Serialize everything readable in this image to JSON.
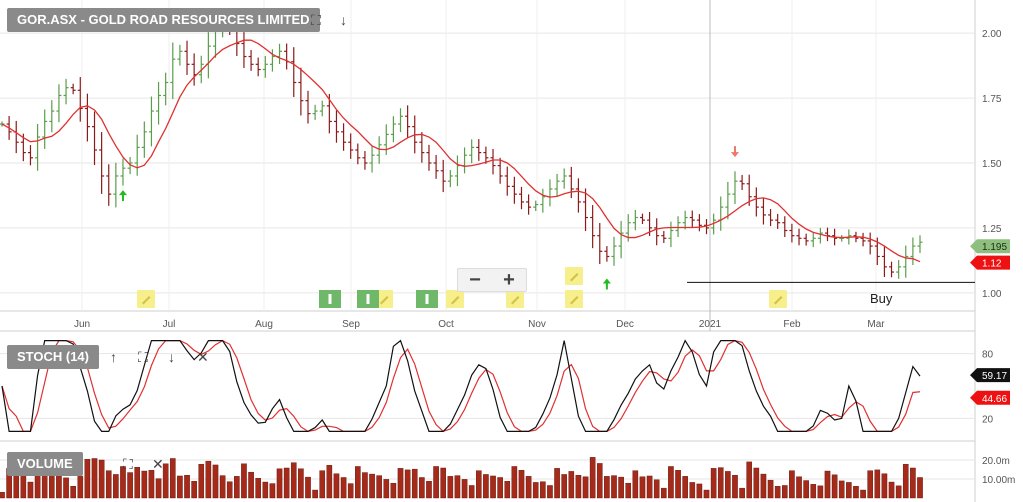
{
  "panels": {
    "price": {
      "title": "GOR.ASX - GOLD ROAD RESOURCES LIMITED"
    },
    "stoch": {
      "title": "STOCH (14)"
    },
    "volume": {
      "title": "VOLUME"
    }
  },
  "icons": {
    "expand": "expand-icon",
    "move_down": "arrow-down-icon",
    "move_up": "arrow-up-icon",
    "close": "close-icon",
    "annotation": "pencil-icon",
    "info": "info-icon",
    "zoom_out": "minus-icon",
    "zoom_in": "plus-icon"
  },
  "zoom": {
    "minus": "−",
    "plus": "+"
  },
  "annotation_text": "Buy",
  "colors": {
    "up_bar": "#5a9e4b",
    "down_bar": "#8b1a1a",
    "ma_line": "#e03030",
    "stoch_k": "#111111",
    "stoch_d": "#e03030",
    "volume_bar": "#a52a1a",
    "tag_bg": "#8a8a8a",
    "last_price_tag": "#8fbf7f",
    "ma_price_tag": "#ee1111",
    "note_marker": "#f6ef8b",
    "info_marker": "#6fb86a"
  },
  "chart_data": {
    "type": "ohlc",
    "x_ticks": [
      "Jun",
      "Jul",
      "Aug",
      "Sep",
      "Oct",
      "Nov",
      "Dec",
      "2021",
      "Feb",
      "Mar"
    ],
    "price": {
      "y_ticks": [
        "1.00",
        "1.25",
        "1.50",
        "1.75",
        "2.00"
      ],
      "ylim": [
        0.93,
        2.12
      ],
      "last_price": "1.195",
      "ma_value": "1.12",
      "support_line": 1.04,
      "close_series": [
        1.65,
        1.62,
        1.58,
        1.54,
        1.52,
        1.6,
        1.66,
        1.7,
        1.76,
        1.79,
        1.78,
        1.71,
        1.64,
        1.55,
        1.45,
        1.38,
        1.45,
        1.48,
        1.5,
        1.56,
        1.62,
        1.7,
        1.76,
        1.81,
        1.9,
        1.93,
        1.88,
        1.84,
        1.88,
        1.95,
        2.02,
        2.06,
        2.03,
        1.96,
        1.91,
        1.88,
        1.86,
        1.88,
        1.91,
        1.93,
        1.89,
        1.81,
        1.74,
        1.69,
        1.7,
        1.72,
        1.66,
        1.62,
        1.58,
        1.55,
        1.52,
        1.5,
        1.53,
        1.57,
        1.61,
        1.65,
        1.68,
        1.64,
        1.58,
        1.54,
        1.5,
        1.47,
        1.43,
        1.45,
        1.49,
        1.53,
        1.56,
        1.54,
        1.52,
        1.49,
        1.45,
        1.41,
        1.38,
        1.35,
        1.33,
        1.34,
        1.37,
        1.4,
        1.43,
        1.45,
        1.4,
        1.35,
        1.29,
        1.22,
        1.16,
        1.14,
        1.18,
        1.23,
        1.27,
        1.29,
        1.28,
        1.25,
        1.22,
        1.21,
        1.24,
        1.27,
        1.29,
        1.28,
        1.26,
        1.25,
        1.28,
        1.33,
        1.38,
        1.43,
        1.42,
        1.37,
        1.33,
        1.3,
        1.28,
        1.27,
        1.24,
        1.22,
        1.21,
        1.2,
        1.21,
        1.23,
        1.22,
        1.21,
        1.21,
        1.22,
        1.21,
        1.2,
        1.18,
        1.14,
        1.1,
        1.08,
        1.1,
        1.14,
        1.18,
        1.195
      ],
      "buy_signals": [
        17,
        85
      ],
      "sell_signals": [
        103
      ]
    },
    "stoch": {
      "y_ticks": [
        "20",
        "80"
      ],
      "ylim": [
        0,
        100
      ],
      "k_value": "59.17",
      "d_value": "44.66"
    },
    "volume": {
      "y_ticks": [
        "10.00m",
        "20.0m"
      ],
      "ylim": [
        0,
        30
      ]
    }
  }
}
